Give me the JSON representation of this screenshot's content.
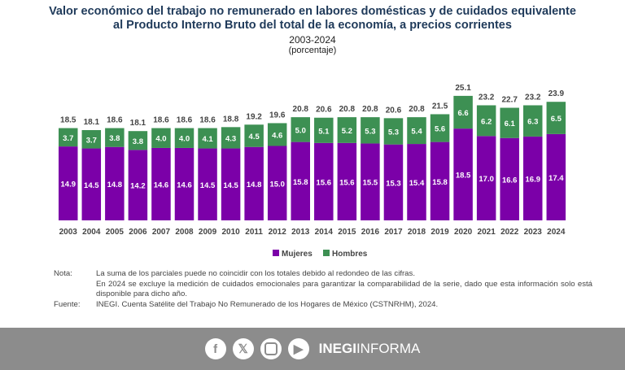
{
  "chart_data": {
    "type": "bar",
    "stacked": true,
    "title": "Valor económico del trabajo no remunerado en labores domésticas y de cuidados equivalente al Producto Interno Bruto del total de la economía, a precios corrientes",
    "title_line1": "Valor económico del trabajo no remunerado en labores domésticas y de cuidados equivalente",
    "title_line2": "al Producto Interno Bruto del total de la economía, a precios corrientes",
    "subtitle": "2003-2024",
    "unit": "(porcentaje)",
    "categories": [
      "2003",
      "2004",
      "2005",
      "2006",
      "2007",
      "2008",
      "2009",
      "2010",
      "2011",
      "2012",
      "2013",
      "2014",
      "2015",
      "2016",
      "2017",
      "2018",
      "2019",
      "2020",
      "2021",
      "2022",
      "2023",
      "2024"
    ],
    "series": [
      {
        "name": "Mujeres",
        "color": "#7b00a8",
        "values": [
          14.9,
          14.5,
          14.8,
          14.2,
          14.6,
          14.6,
          14.5,
          14.5,
          14.8,
          15.0,
          15.8,
          15.6,
          15.6,
          15.5,
          15.3,
          15.4,
          15.8,
          18.5,
          17.0,
          16.6,
          16.9,
          17.4
        ]
      },
      {
        "name": "Hombres",
        "color": "#3d9053",
        "values": [
          3.7,
          3.7,
          3.8,
          3.8,
          4.0,
          4.0,
          4.1,
          4.3,
          4.5,
          4.6,
          5.0,
          5.1,
          5.2,
          5.3,
          5.3,
          5.4,
          5.6,
          6.6,
          6.2,
          6.1,
          6.3,
          6.5
        ]
      }
    ],
    "totals": [
      18.5,
      18.1,
      18.6,
      18.1,
      18.6,
      18.6,
      18.6,
      18.8,
      19.2,
      19.6,
      20.8,
      20.6,
      20.8,
      20.8,
      20.6,
      20.8,
      21.5,
      25.1,
      23.2,
      22.7,
      23.2,
      23.9
    ],
    "legend": "bottom",
    "grid": false
  },
  "notes": {
    "nota_label": "Nota:",
    "nota_1": "La suma de los parciales puede no coincidir con los totales debido al redondeo de las cifras.",
    "nota_2": "En 2024 se excluye la medición de cuidados emocionales para garantizar la comparabilidad de la serie, dado que esta información solo está disponible para dicho año.",
    "fuente_label": "Fuente:",
    "fuente": "INEGI. Cuenta Satélite del Trabajo No Remunerado de los Hogares de México (CSTNRHM), 2024."
  },
  "footer": {
    "icons": [
      "facebook-icon",
      "x-icon",
      "instagram-icon",
      "youtube-icon"
    ],
    "brand_bold": "INEGI",
    "brand_rest": "INFORMA"
  }
}
